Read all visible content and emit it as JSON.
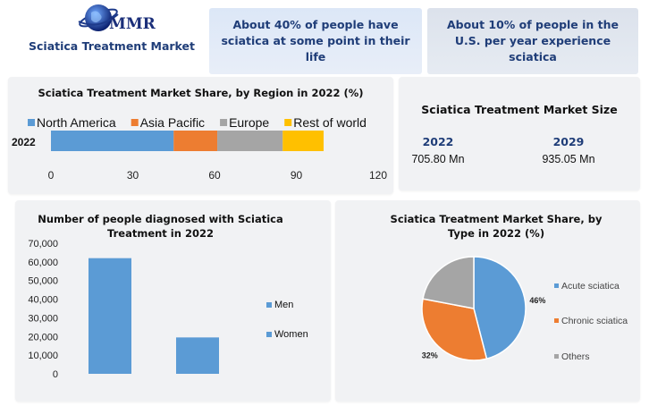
{
  "header": {
    "logo_text": "MMR",
    "page_title": "Sciatica Treatment Market",
    "banner_1": "About 40% of people have sciatica at some point in their life",
    "banner_2": "About 10% of people in the U.S. per year experience sciatica"
  },
  "market_size": {
    "title": "Sciatica Treatment Market Size",
    "items": [
      {
        "year": "2022",
        "value": "705.80 Mn"
      },
      {
        "year": "2029",
        "value": "935.05 Mn"
      }
    ]
  },
  "chart_data": [
    {
      "type": "bar",
      "orientation": "horizontal",
      "stacked": true,
      "title": "Sciatica Treatment Market Share, by Region in 2022 (%)",
      "categories": [
        "2022"
      ],
      "series": [
        {
          "name": "North America",
          "values": [
            45
          ]
        },
        {
          "name": "Asia Pacific",
          "values": [
            16
          ]
        },
        {
          "name": "Europe",
          "values": [
            24
          ]
        },
        {
          "name": "Rest of world",
          "values": [
            15
          ]
        }
      ],
      "xlim": [
        0,
        120
      ],
      "xticks": [
        "0",
        "30",
        "60",
        "90",
        "120"
      ],
      "legend": "top",
      "colors": [
        "#5b9bd5",
        "#ed7d31",
        "#a5a5a5",
        "#ffc000"
      ]
    },
    {
      "type": "bar",
      "title": "Number of people diagnosed with Sciatica Treatment in 2022",
      "categories": [
        "Men",
        "Women"
      ],
      "values": [
        62000,
        19500
      ],
      "ylim": [
        0,
        70000
      ],
      "yticks": [
        "0",
        "10,000",
        "20,000",
        "30,000",
        "40,000",
        "50,000",
        "60,000",
        "70,000"
      ],
      "legend": "right",
      "color": "#5b9bd5"
    },
    {
      "type": "pie",
      "title": "Sciatica Treatment Market Share, by Type in 2022 (%)",
      "labels": [
        "Acute sciatica",
        "Chronic sciatica",
        "Others"
      ],
      "values": [
        46,
        32,
        22
      ],
      "data_labels": [
        "46%",
        "32%",
        ""
      ],
      "legend": "right",
      "colors": [
        "#5b9bd5",
        "#ed7d31",
        "#a5a5a5"
      ]
    }
  ]
}
